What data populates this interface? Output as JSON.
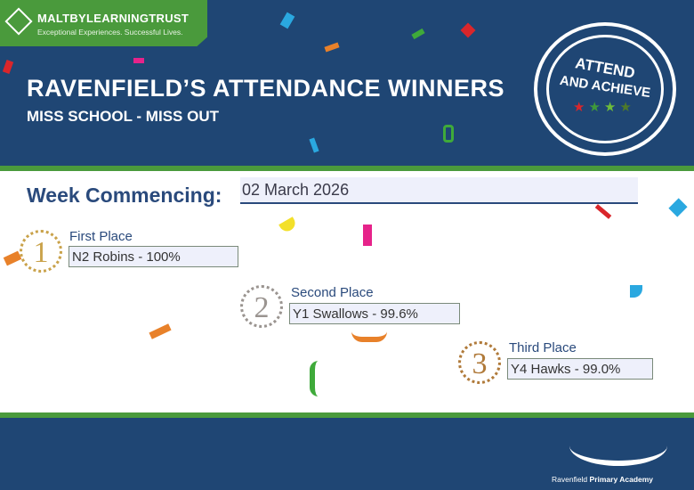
{
  "brand": {
    "name": "MALTBYLEARNINGTRUST",
    "tagline": "Exceptional Experiences. Successful Lives."
  },
  "header": {
    "title": "RAVENFIELD’S ATTENDANCE WINNERS",
    "subtitle": "MISS SCHOOL - MISS OUT"
  },
  "badge": {
    "line1": "ATTEND",
    "line2": "AND ACHIEVE",
    "stars": [
      "#d9262b",
      "#3f9a3a",
      "#6fbd3a",
      "#4e7a2a"
    ]
  },
  "week": {
    "label": "Week Commencing:",
    "value": "02 March 2026"
  },
  "places": [
    {
      "rank": "1",
      "label": "First Place",
      "value": "N2 Robins - 100%",
      "medal_color": "#c9a24a"
    },
    {
      "rank": "2",
      "label": "Second Place",
      "value": "Y1 Swallows - 99.6%",
      "medal_color": "#9a9490"
    },
    {
      "rank": "3",
      "label": "Third Place",
      "value": "Y4 Hawks - 99.0%",
      "medal_color": "#b07a3a"
    }
  ],
  "footer": {
    "school_prefix": "Ravenfield ",
    "school_bold": "Primary Academy"
  },
  "colors": {
    "navy": "#1f4674",
    "green": "#4a9a3c"
  }
}
